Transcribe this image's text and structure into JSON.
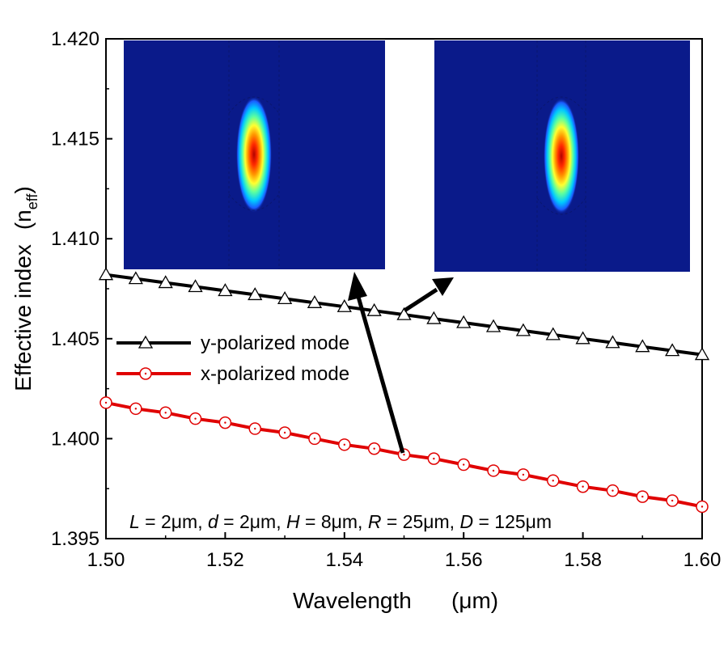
{
  "chart_data": {
    "type": "line",
    "xlabel": "Wavelength",
    "xunit": "(μm)",
    "ylabel": "Effective index",
    "yunit_base": "(n",
    "yunit_sub": "eff",
    "yunit_close": ")",
    "xlim": [
      1.5,
      1.6
    ],
    "ylim": [
      1.395,
      1.42
    ],
    "xticks": [
      "1.50",
      "1.52",
      "1.54",
      "1.56",
      "1.58",
      "1.60"
    ],
    "yticks": [
      "1.395",
      "1.400",
      "1.405",
      "1.410",
      "1.415",
      "1.420"
    ],
    "x": [
      1.5,
      1.505,
      1.51,
      1.515,
      1.52,
      1.525,
      1.53,
      1.535,
      1.54,
      1.545,
      1.55,
      1.555,
      1.56,
      1.565,
      1.57,
      1.575,
      1.58,
      1.585,
      1.59,
      1.595,
      1.6
    ],
    "series": [
      {
        "name": "y-polarized mode",
        "marker": "triangle",
        "color": "#000000",
        "values": [
          1.4082,
          1.408,
          1.4078,
          1.4076,
          1.4074,
          1.4072,
          1.407,
          1.4068,
          1.4066,
          1.4064,
          1.4062,
          1.406,
          1.4058,
          1.4056,
          1.4054,
          1.4052,
          1.405,
          1.4048,
          1.4046,
          1.4044,
          1.4042
        ]
      },
      {
        "name": "x-polarized mode",
        "marker": "circle",
        "color": "#e00000",
        "values": [
          1.4018,
          1.4015,
          1.4013,
          1.401,
          1.4008,
          1.4005,
          1.4003,
          1.4,
          1.3997,
          1.3995,
          1.3992,
          1.399,
          1.3987,
          1.3984,
          1.3982,
          1.3979,
          1.3976,
          1.3974,
          1.3971,
          1.3969,
          1.3966
        ]
      }
    ],
    "legend_position": "middle-left",
    "annotation": {
      "p1": "L",
      "t1": " = 2μm, ",
      "p2": "d",
      "t2": " = 2μm, ",
      "p3": "H",
      "t3": " = 8μm, ",
      "p4": "R",
      "t4": " = 25μm, ",
      "p5": "D",
      "t5": " = 125μm"
    },
    "insets": [
      {
        "content": "mode field intensity map",
        "pointer_target_x": 1.55,
        "pointer_target_series": 1
      },
      {
        "content": "mode field intensity map",
        "pointer_target_x": 1.55,
        "pointer_target_series": 0
      }
    ],
    "colors": {
      "field_background": "#0a1a8a",
      "field_peak": "#c00000"
    }
  }
}
